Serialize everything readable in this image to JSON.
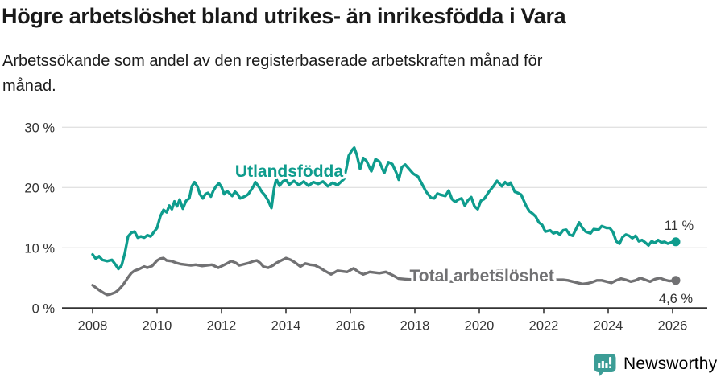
{
  "title": "Högre arbetslöshet bland utrikes- än inrikesfödda i Vara",
  "subtitle_line1": "Arbetssökande som andel av den registerbaserade arbetskraften månad för",
  "subtitle_line2": "månad.",
  "footer": {
    "brand": "Newsworthy"
  },
  "colors": {
    "foreign_born": "#0e9c8d",
    "total": "#717173",
    "grid": "#e2e2e2",
    "axis": "#333333",
    "tick_text": "#333333",
    "annotation_text": "#333333",
    "logo": "#3c9d96"
  },
  "chart_data": {
    "type": "line",
    "title": "Högre arbetslöshet bland utrikes- än inrikesfödda i Vara",
    "subtitle": "Arbetssökande som andel av den registerbaserade arbetskraften månad för månad.",
    "xlabel": "",
    "ylabel": "",
    "grid": true,
    "legend_position": "inline-labels",
    "ylim": [
      0,
      30
    ],
    "xlim": [
      2007.05,
      2027.1
    ],
    "y_ticks": [
      {
        "value": 0,
        "label": "0 %"
      },
      {
        "value": 10,
        "label": "10 %"
      },
      {
        "value": 20,
        "label": "20 %"
      },
      {
        "value": 30,
        "label": "30 %"
      }
    ],
    "x_ticks": [
      {
        "value": 2008,
        "label": "2008"
      },
      {
        "value": 2010,
        "label": "2010"
      },
      {
        "value": 2012,
        "label": "2012"
      },
      {
        "value": 2014,
        "label": "2014"
      },
      {
        "value": 2016,
        "label": "2016"
      },
      {
        "value": 2018,
        "label": "2018"
      },
      {
        "value": 2020,
        "label": "2020"
      },
      {
        "value": 2022,
        "label": "2022"
      },
      {
        "value": 2024,
        "label": "2024"
      },
      {
        "value": 2026,
        "label": "2026"
      }
    ],
    "series": [
      {
        "name": "Utlandsfödda",
        "color": "#0e9c8d",
        "label_anchor": {
          "year": 2014.1,
          "pct": 21.8
        },
        "end_label": {
          "text": "11 %",
          "year": 2026.2,
          "pct": 13.0
        },
        "end_value": 11.0,
        "points": [
          [
            2008.0,
            8.9
          ],
          [
            2008.1,
            8.2
          ],
          [
            2008.2,
            8.6
          ],
          [
            2008.3,
            8.0
          ],
          [
            2008.45,
            7.8
          ],
          [
            2008.6,
            8.0
          ],
          [
            2008.7,
            7.3
          ],
          [
            2008.8,
            6.5
          ],
          [
            2008.9,
            7.1
          ],
          [
            2009.0,
            9.1
          ],
          [
            2009.1,
            11.9
          ],
          [
            2009.2,
            12.5
          ],
          [
            2009.3,
            12.7
          ],
          [
            2009.4,
            11.7
          ],
          [
            2009.5,
            11.9
          ],
          [
            2009.6,
            11.7
          ],
          [
            2009.7,
            12.1
          ],
          [
            2009.8,
            11.9
          ],
          [
            2009.9,
            12.6
          ],
          [
            2010.0,
            13.3
          ],
          [
            2010.1,
            15.2
          ],
          [
            2010.2,
            16.3
          ],
          [
            2010.3,
            15.9
          ],
          [
            2010.38,
            17.0
          ],
          [
            2010.46,
            16.4
          ],
          [
            2010.54,
            17.7
          ],
          [
            2010.62,
            16.9
          ],
          [
            2010.7,
            18.0
          ],
          [
            2010.8,
            16.5
          ],
          [
            2010.9,
            17.8
          ],
          [
            2011.0,
            18.2
          ],
          [
            2011.08,
            20.2
          ],
          [
            2011.16,
            20.9
          ],
          [
            2011.25,
            20.2
          ],
          [
            2011.33,
            18.9
          ],
          [
            2011.42,
            18.2
          ],
          [
            2011.5,
            18.9
          ],
          [
            2011.58,
            19.1
          ],
          [
            2011.67,
            18.5
          ],
          [
            2011.75,
            19.5
          ],
          [
            2011.83,
            20.2
          ],
          [
            2011.92,
            20.7
          ],
          [
            2012.0,
            20.1
          ],
          [
            2012.08,
            18.9
          ],
          [
            2012.17,
            19.4
          ],
          [
            2012.25,
            19.0
          ],
          [
            2012.33,
            18.6
          ],
          [
            2012.42,
            19.3
          ],
          [
            2012.5,
            18.9
          ],
          [
            2012.58,
            18.2
          ],
          [
            2012.67,
            18.4
          ],
          [
            2012.75,
            18.6
          ],
          [
            2012.83,
            18.9
          ],
          [
            2012.92,
            19.6
          ],
          [
            2013.0,
            20.3
          ],
          [
            2013.05,
            20.9
          ],
          [
            2013.15,
            20.2
          ],
          [
            2013.25,
            19.3
          ],
          [
            2013.35,
            18.7
          ],
          [
            2013.45,
            17.8
          ],
          [
            2013.55,
            16.6
          ],
          [
            2013.63,
            19.8
          ],
          [
            2013.7,
            21.4
          ],
          [
            2013.8,
            20.3
          ],
          [
            2013.9,
            21.0
          ],
          [
            2014.0,
            21.3
          ],
          [
            2014.1,
            20.5
          ],
          [
            2014.25,
            21.1
          ],
          [
            2014.4,
            20.4
          ],
          [
            2014.55,
            21.0
          ],
          [
            2014.7,
            20.3
          ],
          [
            2014.85,
            20.9
          ],
          [
            2015.0,
            20.6
          ],
          [
            2015.15,
            21.0
          ],
          [
            2015.3,
            20.2
          ],
          [
            2015.45,
            20.8
          ],
          [
            2015.6,
            20.4
          ],
          [
            2015.72,
            21.0
          ],
          [
            2015.8,
            21.4
          ],
          [
            2015.88,
            23.3
          ],
          [
            2015.95,
            25.3
          ],
          [
            2016.05,
            26.2
          ],
          [
            2016.12,
            26.6
          ],
          [
            2016.2,
            25.4
          ],
          [
            2016.3,
            23.1
          ],
          [
            2016.4,
            24.9
          ],
          [
            2016.5,
            24.4
          ],
          [
            2016.65,
            22.7
          ],
          [
            2016.78,
            24.7
          ],
          [
            2016.9,
            24.3
          ],
          [
            2017.05,
            22.4
          ],
          [
            2017.18,
            24.2
          ],
          [
            2017.3,
            23.9
          ],
          [
            2017.42,
            22.5
          ],
          [
            2017.5,
            21.3
          ],
          [
            2017.6,
            23.4
          ],
          [
            2017.7,
            23.8
          ],
          [
            2017.8,
            23.2
          ],
          [
            2017.95,
            22.3
          ],
          [
            2018.1,
            21.8
          ],
          [
            2018.25,
            20.3
          ],
          [
            2018.35,
            19.3
          ],
          [
            2018.5,
            18.3
          ],
          [
            2018.6,
            18.2
          ],
          [
            2018.7,
            19.0
          ],
          [
            2018.8,
            18.8
          ],
          [
            2018.95,
            18.6
          ],
          [
            2019.05,
            19.5
          ],
          [
            2019.15,
            18.1
          ],
          [
            2019.25,
            17.6
          ],
          [
            2019.35,
            18.0
          ],
          [
            2019.45,
            18.2
          ],
          [
            2019.55,
            17.0
          ],
          [
            2019.65,
            17.9
          ],
          [
            2019.75,
            18.4
          ],
          [
            2019.85,
            16.9
          ],
          [
            2019.95,
            16.4
          ],
          [
            2020.05,
            17.8
          ],
          [
            2020.15,
            18.1
          ],
          [
            2020.3,
            19.3
          ],
          [
            2020.45,
            20.3
          ],
          [
            2020.55,
            21.1
          ],
          [
            2020.7,
            20.2
          ],
          [
            2020.8,
            20.9
          ],
          [
            2020.9,
            20.4
          ],
          [
            2020.97,
            20.8
          ],
          [
            2021.1,
            19.3
          ],
          [
            2021.2,
            19.1
          ],
          [
            2021.3,
            18.8
          ],
          [
            2021.45,
            17.0
          ],
          [
            2021.55,
            16.1
          ],
          [
            2021.65,
            15.7
          ],
          [
            2021.75,
            15.2
          ],
          [
            2021.85,
            14.2
          ],
          [
            2021.95,
            13.8
          ],
          [
            2022.05,
            12.7
          ],
          [
            2022.2,
            12.9
          ],
          [
            2022.3,
            12.4
          ],
          [
            2022.4,
            12.6
          ],
          [
            2022.5,
            12.2
          ],
          [
            2022.6,
            12.9
          ],
          [
            2022.7,
            13.0
          ],
          [
            2022.8,
            12.2
          ],
          [
            2022.9,
            12.0
          ],
          [
            2023.0,
            13.1
          ],
          [
            2023.1,
            14.2
          ],
          [
            2023.2,
            13.3
          ],
          [
            2023.3,
            12.7
          ],
          [
            2023.45,
            12.4
          ],
          [
            2023.55,
            13.1
          ],
          [
            2023.7,
            13.0
          ],
          [
            2023.8,
            13.6
          ],
          [
            2023.95,
            13.3
          ],
          [
            2024.05,
            13.3
          ],
          [
            2024.15,
            12.6
          ],
          [
            2024.25,
            11.1
          ],
          [
            2024.35,
            10.7
          ],
          [
            2024.45,
            11.8
          ],
          [
            2024.55,
            12.2
          ],
          [
            2024.65,
            12.0
          ],
          [
            2024.75,
            11.6
          ],
          [
            2024.85,
            12.0
          ],
          [
            2024.95,
            11.1
          ],
          [
            2025.05,
            11.3
          ],
          [
            2025.15,
            10.9
          ],
          [
            2025.25,
            10.4
          ],
          [
            2025.35,
            11.1
          ],
          [
            2025.45,
            10.8
          ],
          [
            2025.55,
            11.3
          ],
          [
            2025.65,
            10.9
          ],
          [
            2025.75,
            11.0
          ],
          [
            2025.85,
            10.7
          ],
          [
            2025.95,
            10.9
          ],
          [
            2026.1,
            11.0
          ]
        ]
      },
      {
        "name": "Total arbetslöshet",
        "color": "#717173",
        "label_anchor": {
          "year": 2020.08,
          "pct": 4.45
        },
        "end_label": {
          "text": "4,6 %",
          "year": 2026.1,
          "pct": 0.85
        },
        "end_value": 4.6,
        "points": [
          [
            2008.0,
            3.8
          ],
          [
            2008.1,
            3.4
          ],
          [
            2008.2,
            3.0
          ],
          [
            2008.35,
            2.5
          ],
          [
            2008.45,
            2.2
          ],
          [
            2008.55,
            2.3
          ],
          [
            2008.7,
            2.6
          ],
          [
            2008.8,
            3.0
          ],
          [
            2008.95,
            3.9
          ],
          [
            2009.1,
            5.1
          ],
          [
            2009.2,
            5.8
          ],
          [
            2009.3,
            6.2
          ],
          [
            2009.45,
            6.5
          ],
          [
            2009.6,
            6.9
          ],
          [
            2009.7,
            6.7
          ],
          [
            2009.85,
            7.0
          ],
          [
            2010.0,
            7.9
          ],
          [
            2010.1,
            8.2
          ],
          [
            2010.2,
            8.3
          ],
          [
            2010.3,
            7.9
          ],
          [
            2010.45,
            7.8
          ],
          [
            2010.6,
            7.5
          ],
          [
            2010.75,
            7.3
          ],
          [
            2010.9,
            7.2
          ],
          [
            2011.05,
            7.1
          ],
          [
            2011.2,
            7.2
          ],
          [
            2011.4,
            7.0
          ],
          [
            2011.55,
            7.1
          ],
          [
            2011.7,
            7.2
          ],
          [
            2011.9,
            6.7
          ],
          [
            2012.05,
            7.1
          ],
          [
            2012.2,
            7.5
          ],
          [
            2012.3,
            7.8
          ],
          [
            2012.45,
            7.5
          ],
          [
            2012.55,
            7.1
          ],
          [
            2012.7,
            7.3
          ],
          [
            2012.85,
            7.5
          ],
          [
            2013.0,
            7.8
          ],
          [
            2013.1,
            7.9
          ],
          [
            2013.2,
            7.5
          ],
          [
            2013.3,
            6.9
          ],
          [
            2013.45,
            6.7
          ],
          [
            2013.6,
            7.1
          ],
          [
            2013.7,
            7.5
          ],
          [
            2013.85,
            7.9
          ],
          [
            2014.0,
            8.3
          ],
          [
            2014.15,
            8.0
          ],
          [
            2014.3,
            7.5
          ],
          [
            2014.45,
            6.9
          ],
          [
            2014.6,
            7.4
          ],
          [
            2014.75,
            7.2
          ],
          [
            2014.9,
            7.1
          ],
          [
            2015.05,
            6.7
          ],
          [
            2015.2,
            6.2
          ],
          [
            2015.4,
            5.6
          ],
          [
            2015.6,
            6.2
          ],
          [
            2015.75,
            6.1
          ],
          [
            2015.9,
            6.0
          ],
          [
            2016.1,
            6.6
          ],
          [
            2016.25,
            6.0
          ],
          [
            2016.4,
            5.6
          ],
          [
            2016.6,
            6.0
          ],
          [
            2016.75,
            5.9
          ],
          [
            2016.9,
            5.8
          ],
          [
            2017.1,
            6.0
          ],
          [
            2017.3,
            5.5
          ],
          [
            2017.5,
            4.9
          ],
          [
            2017.7,
            4.8
          ],
          [
            2018.0,
            4.7
          ],
          [
            2018.4,
            4.6
          ],
          [
            2018.8,
            4.5
          ],
          [
            2019.2,
            4.4
          ],
          [
            2019.6,
            4.4
          ],
          [
            2020.0,
            4.8
          ],
          [
            2020.3,
            5.7
          ],
          [
            2020.6,
            6.2
          ],
          [
            2020.9,
            6.1
          ],
          [
            2021.2,
            5.8
          ],
          [
            2021.6,
            5.3
          ],
          [
            2022.0,
            4.9
          ],
          [
            2022.3,
            4.7
          ],
          [
            2022.6,
            4.7
          ],
          [
            2022.75,
            4.6
          ],
          [
            2022.9,
            4.4
          ],
          [
            2023.05,
            4.2
          ],
          [
            2023.2,
            4.0
          ],
          [
            2023.35,
            4.1
          ],
          [
            2023.5,
            4.3
          ],
          [
            2023.65,
            4.6
          ],
          [
            2023.8,
            4.6
          ],
          [
            2023.95,
            4.4
          ],
          [
            2024.1,
            4.2
          ],
          [
            2024.25,
            4.6
          ],
          [
            2024.4,
            4.9
          ],
          [
            2024.55,
            4.7
          ],
          [
            2024.7,
            4.4
          ],
          [
            2024.85,
            4.6
          ],
          [
            2025.0,
            5.0
          ],
          [
            2025.15,
            4.7
          ],
          [
            2025.3,
            4.4
          ],
          [
            2025.45,
            4.8
          ],
          [
            2025.6,
            5.0
          ],
          [
            2025.75,
            4.7
          ],
          [
            2025.9,
            4.5
          ],
          [
            2026.1,
            4.6
          ]
        ]
      }
    ]
  }
}
